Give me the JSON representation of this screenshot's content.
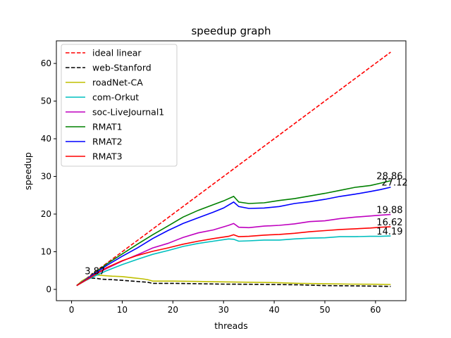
{
  "chart_data": {
    "type": "line",
    "title": "speedup graph",
    "xlabel": "threads",
    "ylabel": "speedup",
    "xlim": [
      -3,
      66
    ],
    "ylim": [
      -3,
      66
    ],
    "xticks": [
      0,
      10,
      20,
      30,
      40,
      50,
      60
    ],
    "yticks": [
      0,
      10,
      20,
      30,
      40,
      50,
      60
    ],
    "grid": false,
    "legend_position": "top-left",
    "series": [
      {
        "name": "ideal linear",
        "color": "#ff0000",
        "dashed": true,
        "points": [
          [
            1,
            1
          ],
          [
            63,
            63
          ]
        ]
      },
      {
        "name": "web-Stanford",
        "color": "#000000",
        "dashed": true,
        "points": [
          [
            1,
            1
          ],
          [
            2,
            2.1
          ],
          [
            3,
            2.8
          ],
          [
            4,
            3.0
          ],
          [
            5,
            2.9
          ],
          [
            6,
            2.7
          ],
          [
            8,
            2.6
          ],
          [
            10,
            2.4
          ],
          [
            12,
            2.2
          ],
          [
            14,
            2.0
          ],
          [
            15,
            1.9
          ],
          [
            16,
            1.6
          ],
          [
            20,
            1.6
          ],
          [
            25,
            1.5
          ],
          [
            30,
            1.4
          ],
          [
            35,
            1.35
          ],
          [
            40,
            1.3
          ],
          [
            45,
            1.2
          ],
          [
            50,
            1.0
          ],
          [
            55,
            0.95
          ],
          [
            60,
            0.85
          ],
          [
            63,
            0.8
          ]
        ]
      },
      {
        "name": "roadNet-CA",
        "color": "#bfbf00",
        "dashed": false,
        "points": [
          [
            1,
            1
          ],
          [
            2,
            2.2
          ],
          [
            3,
            3.0
          ],
          [
            4,
            3.5
          ],
          [
            5,
            3.8
          ],
          [
            6,
            3.7
          ],
          [
            8,
            3.5
          ],
          [
            10,
            3.4
          ],
          [
            12,
            3.1
          ],
          [
            14,
            2.8
          ],
          [
            15,
            2.6
          ],
          [
            16,
            2.2
          ],
          [
            20,
            2.2
          ],
          [
            25,
            2.1
          ],
          [
            30,
            2.0
          ],
          [
            35,
            1.9
          ],
          [
            40,
            1.8
          ],
          [
            45,
            1.6
          ],
          [
            50,
            1.5
          ],
          [
            55,
            1.4
          ],
          [
            60,
            1.35
          ],
          [
            63,
            1.3
          ]
        ]
      },
      {
        "name": "com-Orkut",
        "color": "#00bfbf",
        "dashed": false,
        "points": [
          [
            1,
            1
          ],
          [
            3,
            2.5
          ],
          [
            5,
            3.8
          ],
          [
            7,
            5.0
          ],
          [
            10,
            6.6
          ],
          [
            13,
            8.0
          ],
          [
            16,
            9.3
          ],
          [
            19,
            10.3
          ],
          [
            22,
            11.4
          ],
          [
            25,
            12.2
          ],
          [
            28,
            12.8
          ],
          [
            31,
            13.4
          ],
          [
            32,
            13.3
          ],
          [
            33,
            12.8
          ],
          [
            35,
            12.9
          ],
          [
            38,
            13.1
          ],
          [
            41,
            13.1
          ],
          [
            44,
            13.4
          ],
          [
            47,
            13.6
          ],
          [
            50,
            13.7
          ],
          [
            53,
            14.0
          ],
          [
            56,
            14.0
          ],
          [
            59,
            14.1
          ],
          [
            61,
            14.1
          ],
          [
            63,
            14.19
          ]
        ]
      },
      {
        "name": "soc-LiveJournal1",
        "color": "#bf00bf",
        "dashed": false,
        "points": [
          [
            1,
            1
          ],
          [
            3,
            2.6
          ],
          [
            5,
            4.2
          ],
          [
            7,
            5.6
          ],
          [
            10,
            7.5
          ],
          [
            13,
            9.2
          ],
          [
            16,
            11.0
          ],
          [
            19,
            12.2
          ],
          [
            22,
            13.8
          ],
          [
            25,
            15.0
          ],
          [
            28,
            15.8
          ],
          [
            31,
            17.0
          ],
          [
            32,
            17.5
          ],
          [
            33,
            16.5
          ],
          [
            35,
            16.4
          ],
          [
            38,
            16.8
          ],
          [
            41,
            17.0
          ],
          [
            44,
            17.4
          ],
          [
            47,
            18.0
          ],
          [
            50,
            18.2
          ],
          [
            53,
            18.8
          ],
          [
            56,
            19.2
          ],
          [
            59,
            19.5
          ],
          [
            61,
            19.7
          ],
          [
            63,
            19.88
          ]
        ]
      },
      {
        "name": "RMAT1",
        "color": "#008000",
        "dashed": false,
        "points": [
          [
            1,
            1
          ],
          [
            3,
            2.8
          ],
          [
            5,
            4.8
          ],
          [
            7,
            6.8
          ],
          [
            10,
            9.4
          ],
          [
            13,
            12.0
          ],
          [
            16,
            14.5
          ],
          [
            19,
            16.8
          ],
          [
            22,
            19.2
          ],
          [
            25,
            21.0
          ],
          [
            28,
            22.5
          ],
          [
            30,
            23.5
          ],
          [
            32,
            24.7
          ],
          [
            33,
            23.2
          ],
          [
            35,
            22.8
          ],
          [
            38,
            23.0
          ],
          [
            41,
            23.6
          ],
          [
            44,
            24.1
          ],
          [
            47,
            24.8
          ],
          [
            50,
            25.5
          ],
          [
            53,
            26.3
          ],
          [
            56,
            27.1
          ],
          [
            59,
            27.6
          ],
          [
            61,
            28.2
          ],
          [
            63,
            28.86
          ]
        ]
      },
      {
        "name": "RMAT2",
        "color": "#0000ff",
        "dashed": false,
        "points": [
          [
            1,
            1
          ],
          [
            3,
            2.8
          ],
          [
            5,
            4.6
          ],
          [
            7,
            6.4
          ],
          [
            10,
            8.8
          ],
          [
            13,
            11.0
          ],
          [
            16,
            13.5
          ],
          [
            19,
            15.6
          ],
          [
            22,
            17.5
          ],
          [
            25,
            19.0
          ],
          [
            28,
            20.5
          ],
          [
            30,
            21.6
          ],
          [
            32,
            23.2
          ],
          [
            33,
            22.0
          ],
          [
            35,
            21.5
          ],
          [
            38,
            21.6
          ],
          [
            41,
            22.0
          ],
          [
            44,
            22.8
          ],
          [
            47,
            23.3
          ],
          [
            50,
            23.9
          ],
          [
            53,
            24.7
          ],
          [
            56,
            25.3
          ],
          [
            59,
            26.0
          ],
          [
            61,
            26.5
          ],
          [
            63,
            27.12
          ]
        ]
      },
      {
        "name": "RMAT3",
        "color": "#ff0000",
        "dashed": false,
        "points": [
          [
            1,
            1
          ],
          [
            3,
            2.6
          ],
          [
            5,
            4.3
          ],
          [
            7,
            5.8
          ],
          [
            10,
            7.6
          ],
          [
            13,
            9.0
          ],
          [
            16,
            10.1
          ],
          [
            19,
            11.0
          ],
          [
            22,
            12.0
          ],
          [
            25,
            12.8
          ],
          [
            28,
            13.5
          ],
          [
            31,
            14.1
          ],
          [
            32,
            14.5
          ],
          [
            33,
            14.0
          ],
          [
            35,
            14.1
          ],
          [
            38,
            14.4
          ],
          [
            41,
            14.6
          ],
          [
            44,
            14.9
          ],
          [
            47,
            15.3
          ],
          [
            50,
            15.6
          ],
          [
            53,
            15.9
          ],
          [
            56,
            16.1
          ],
          [
            59,
            16.3
          ],
          [
            61,
            16.5
          ],
          [
            63,
            16.62
          ]
        ]
      }
    ],
    "annotations": [
      {
        "text": "3.87",
        "x": 2.6,
        "y": 4.0
      },
      {
        "text": "28.86",
        "x": 60.2,
        "y": 29.3
      },
      {
        "text": "27.12",
        "x": 61.2,
        "y": 27.6
      },
      {
        "text": "19.88",
        "x": 60.2,
        "y": 20.3
      },
      {
        "text": "16.62",
        "x": 60.2,
        "y": 17.0
      },
      {
        "text": "14.19",
        "x": 60.2,
        "y": 14.6
      }
    ]
  }
}
